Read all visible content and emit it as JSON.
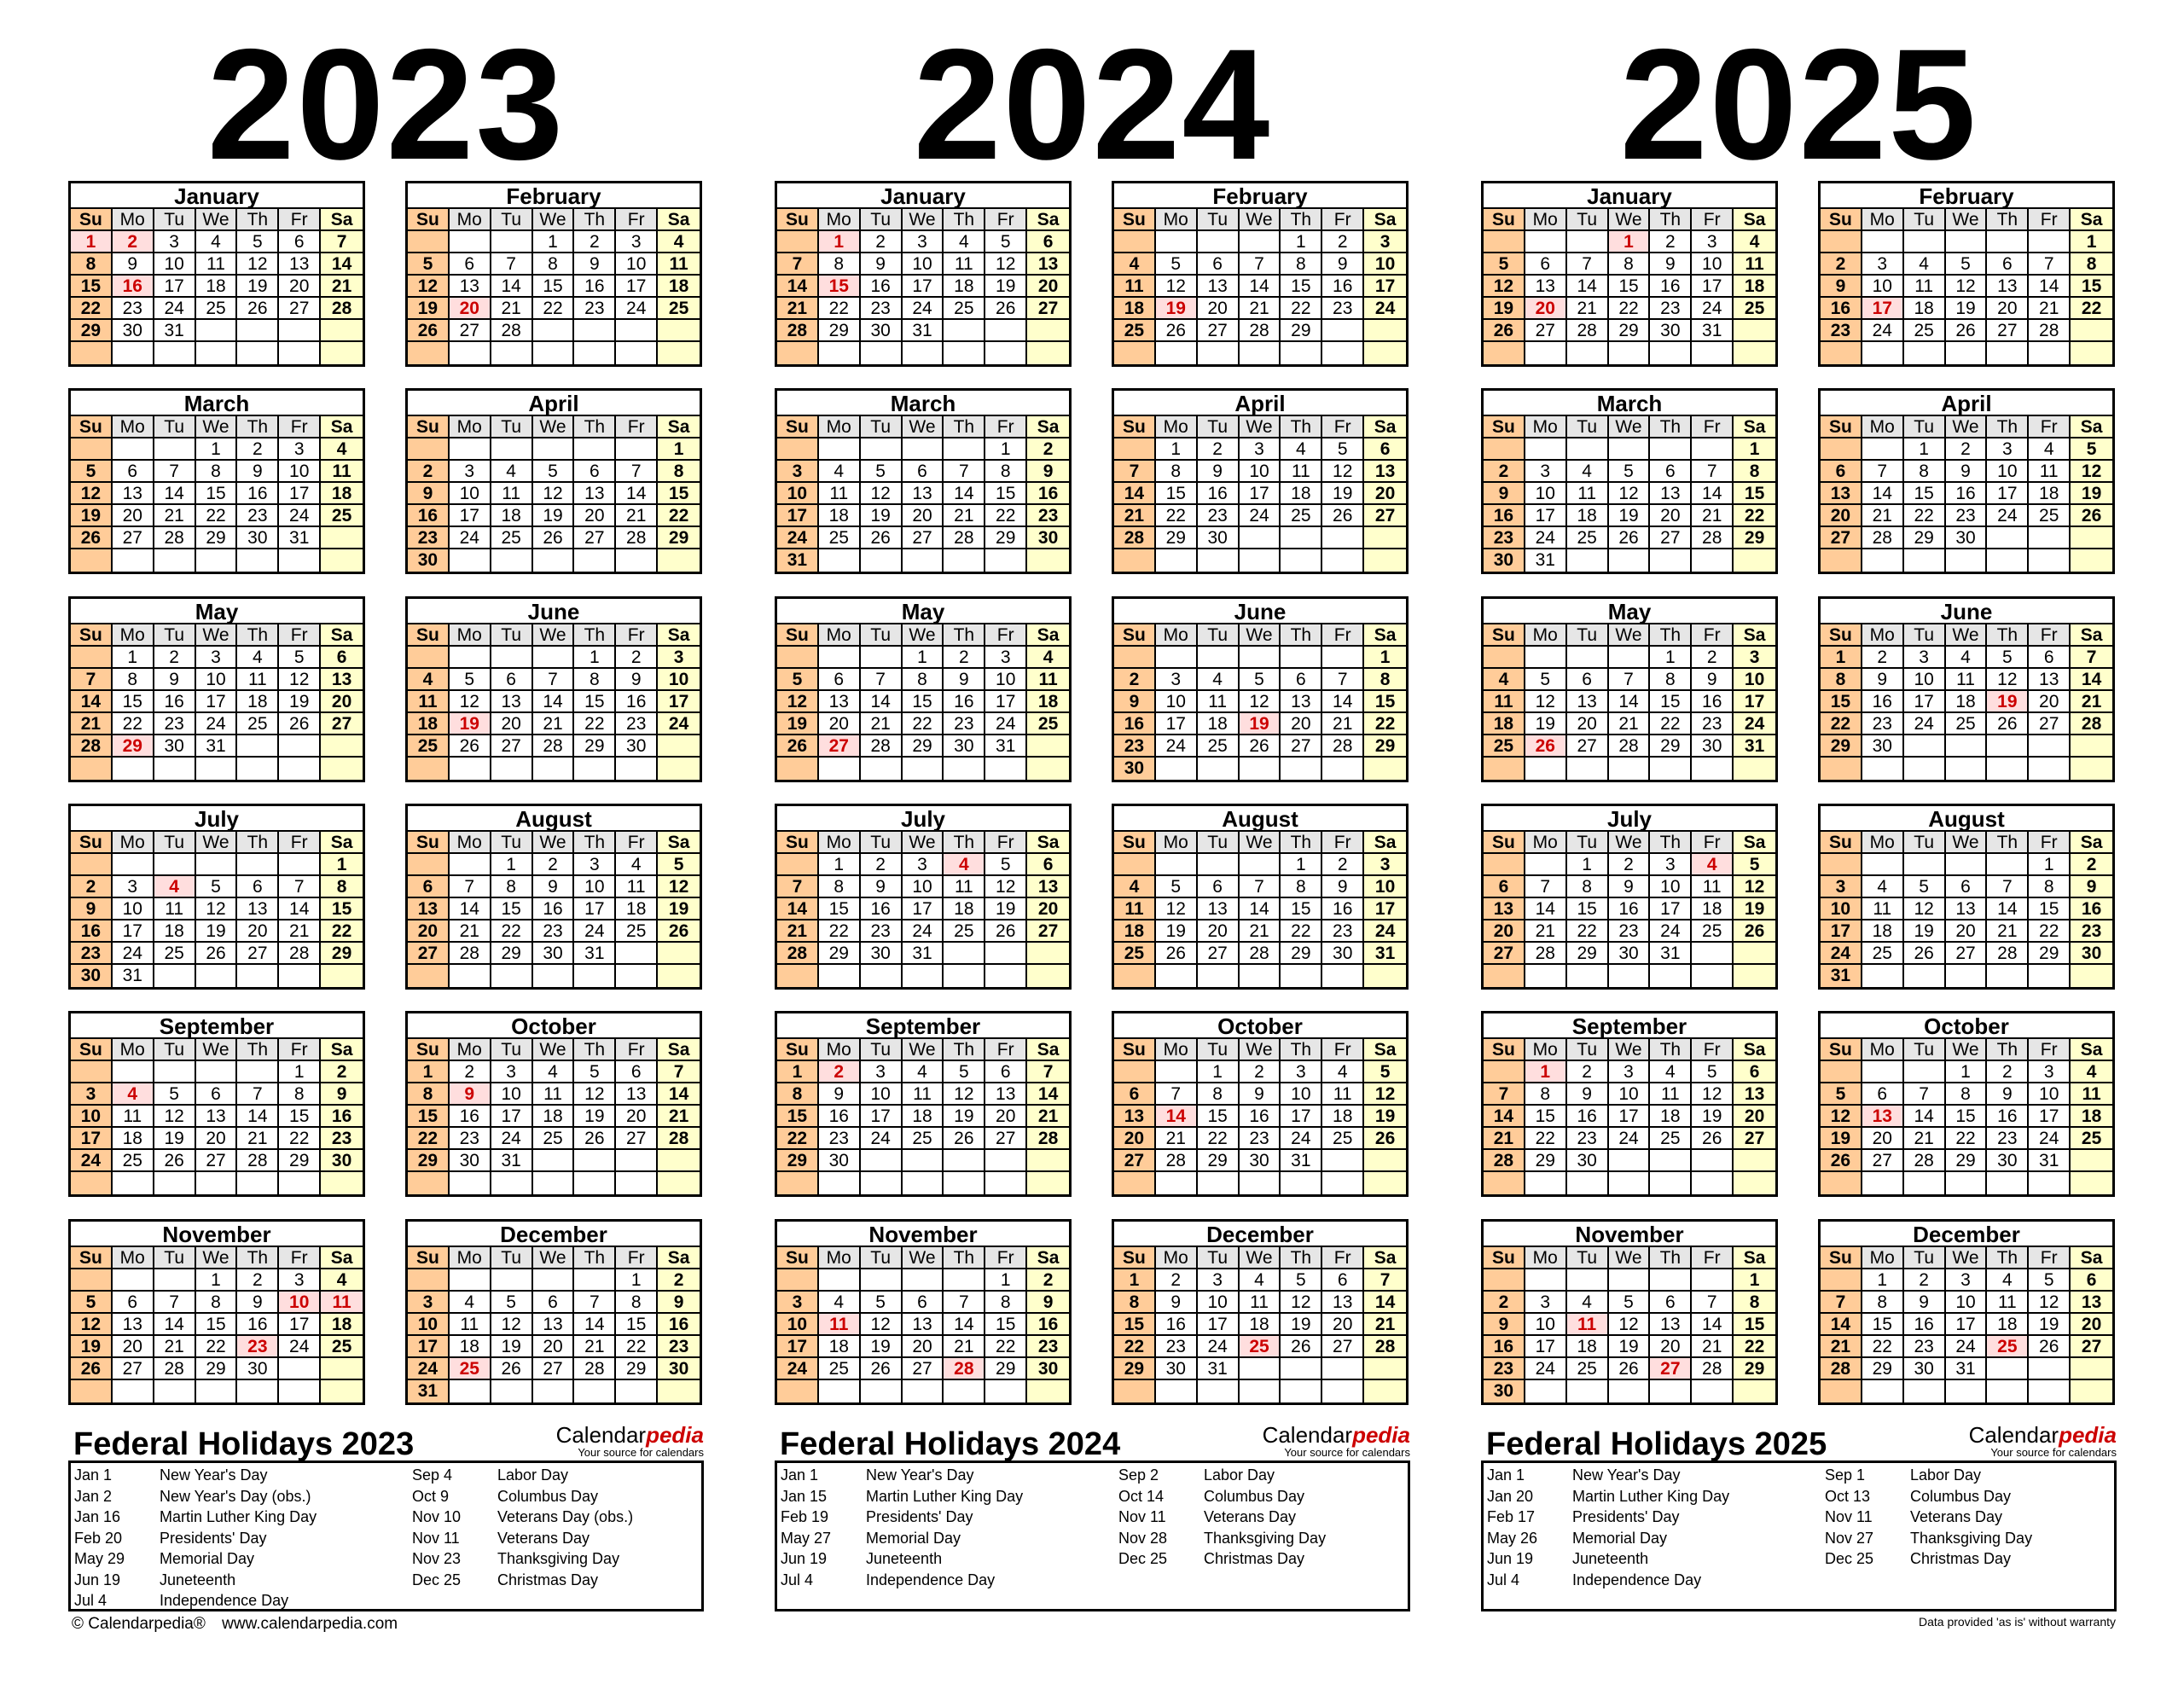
{
  "weekdays": [
    "Su",
    "Mo",
    "Tu",
    "We",
    "Th",
    "Fr",
    "Sa"
  ],
  "months": [
    "January",
    "February",
    "March",
    "April",
    "May",
    "June",
    "July",
    "August",
    "September",
    "October",
    "November",
    "December"
  ],
  "colors": {
    "sunday": "#ffcc99",
    "saturday": "#ffffcc",
    "weekday_header": "#e6e6e6",
    "holiday_bg": "#ffdede",
    "holiday_text": "#cc0000",
    "brand_red": "#cc0000"
  },
  "years": [
    {
      "year": "2023",
      "holidays_title": "Federal Holidays 2023",
      "holidays": [
        {
          "date": "Jan 1",
          "name": "New Year's Day"
        },
        {
          "date": "Jan 2",
          "name": "New Year's Day (obs.)"
        },
        {
          "date": "Jan 16",
          "name": "Martin Luther King Day"
        },
        {
          "date": "Feb 20",
          "name": "Presidents' Day"
        },
        {
          "date": "May 29",
          "name": "Memorial Day"
        },
        {
          "date": "Jun 19",
          "name": "Juneteenth"
        },
        {
          "date": "Jul 4",
          "name": "Independence Day"
        },
        {
          "date": "Sep 4",
          "name": "Labor Day"
        },
        {
          "date": "Oct 9",
          "name": "Columbus Day"
        },
        {
          "date": "Nov 10",
          "name": "Veterans Day (obs.)"
        },
        {
          "date": "Nov 11",
          "name": "Veterans Day"
        },
        {
          "date": "Nov 23",
          "name": "Thanksgiving Day"
        },
        {
          "date": "Dec 25",
          "name": "Christmas Day"
        }
      ]
    },
    {
      "year": "2024",
      "holidays_title": "Federal Holidays 2024",
      "holidays": [
        {
          "date": "Jan 1",
          "name": "New Year's Day"
        },
        {
          "date": "Jan 15",
          "name": "Martin Luther King Day"
        },
        {
          "date": "Feb 19",
          "name": "Presidents' Day"
        },
        {
          "date": "May 27",
          "name": "Memorial Day"
        },
        {
          "date": "Jun 19",
          "name": "Juneteenth"
        },
        {
          "date": "Jul 4",
          "name": "Independence Day"
        },
        {
          "date": "Sep 2",
          "name": "Labor Day"
        },
        {
          "date": "Oct 14",
          "name": "Columbus Day"
        },
        {
          "date": "Nov 11",
          "name": "Veterans Day"
        },
        {
          "date": "Nov 28",
          "name": "Thanksgiving Day"
        },
        {
          "date": "Dec 25",
          "name": "Christmas Day"
        }
      ]
    },
    {
      "year": "2025",
      "holidays_title": "Federal Holidays 2025",
      "holidays": [
        {
          "date": "Jan 1",
          "name": "New Year's Day"
        },
        {
          "date": "Jan 20",
          "name": "Martin Luther King Day"
        },
        {
          "date": "Feb 17",
          "name": "Presidents' Day"
        },
        {
          "date": "May 26",
          "name": "Memorial Day"
        },
        {
          "date": "Jun 19",
          "name": "Juneteenth"
        },
        {
          "date": "Jul 4",
          "name": "Independence Day"
        },
        {
          "date": "Sep 1",
          "name": "Labor Day"
        },
        {
          "date": "Oct 13",
          "name": "Columbus Day"
        },
        {
          "date": "Nov 11",
          "name": "Veterans Day"
        },
        {
          "date": "Nov 27",
          "name": "Thanksgiving Day"
        },
        {
          "date": "Dec 25",
          "name": "Christmas Day"
        }
      ]
    }
  ],
  "logo": {
    "name_plain": "Calendar",
    "name_accent": "pedia",
    "tagline": "Your source for calendars"
  },
  "footer": {
    "copyright": "© Calendarpedia®",
    "url": "www.calendarpedia.com",
    "disclaimer": "Data provided 'as is' without warranty"
  }
}
